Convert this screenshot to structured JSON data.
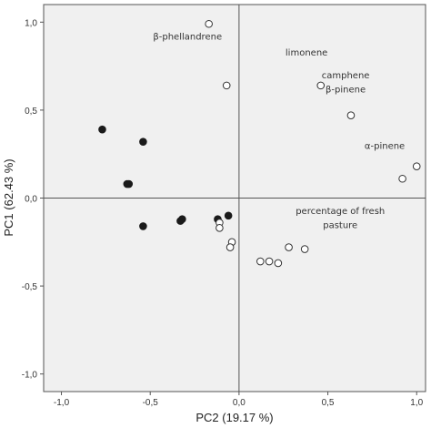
{
  "chart_data": {
    "type": "scatter",
    "title": "",
    "xlabel": "PC2 (19.17 %)",
    "ylabel": "PC1 (62.43 %)",
    "xlim": [
      -1.1,
      1.05
    ],
    "ylim": [
      -1.1,
      1.1
    ],
    "xticks": [
      -1.0,
      -0.5,
      0.0,
      0.5,
      1.0
    ],
    "yticks": [
      -1.0,
      -0.5,
      0.0,
      0.5,
      1.0
    ],
    "xtick_labels": [
      "-1,0",
      "-0,5",
      "0,0",
      "0,5",
      "1,0"
    ],
    "ytick_labels": [
      "-1,0",
      "-0,5",
      "0,0",
      "0,5",
      "1,0"
    ],
    "grid": false,
    "reference_lines": {
      "x": 0,
      "y": 0
    },
    "plot_background": "#f0f0f0",
    "series": [
      {
        "marker": "filled",
        "color": "#1a1a1a",
        "points": [
          {
            "x": -0.77,
            "y": 0.39
          },
          {
            "x": -0.54,
            "y": 0.32
          },
          {
            "x": -0.63,
            "y": 0.08
          },
          {
            "x": -0.62,
            "y": 0.08
          },
          {
            "x": -0.54,
            "y": -0.16
          },
          {
            "x": -0.33,
            "y": -0.13
          },
          {
            "x": -0.32,
            "y": -0.12
          },
          {
            "x": -0.12,
            "y": -0.12
          },
          {
            "x": -0.06,
            "y": -0.1
          }
        ]
      },
      {
        "marker": "hollow",
        "color": "#333333",
        "points": [
          {
            "x": -0.17,
            "y": 0.99
          },
          {
            "x": -0.07,
            "y": 0.64
          },
          {
            "x": 0.46,
            "y": 0.64
          },
          {
            "x": 0.63,
            "y": 0.47
          },
          {
            "x": 1.0,
            "y": 0.18
          },
          {
            "x": 0.92,
            "y": 0.11
          },
          {
            "x": -0.11,
            "y": -0.14
          },
          {
            "x": -0.11,
            "y": -0.17
          },
          {
            "x": -0.04,
            "y": -0.25
          },
          {
            "x": -0.05,
            "y": -0.28
          },
          {
            "x": 0.12,
            "y": -0.36
          },
          {
            "x": 0.17,
            "y": -0.36
          },
          {
            "x": 0.22,
            "y": -0.37
          },
          {
            "x": 0.28,
            "y": -0.28
          },
          {
            "x": 0.37,
            "y": -0.29
          }
        ]
      }
    ],
    "annotations": [
      {
        "text": "β-phellandrene",
        "x": -0.29,
        "y": 0.9
      },
      {
        "text": "limonene",
        "x": 0.38,
        "y": 0.81
      },
      {
        "text": "camphene",
        "x": 0.6,
        "y": 0.68
      },
      {
        "text": "β-pinene",
        "x": 0.6,
        "y": 0.6
      },
      {
        "text": "α-pinene",
        "x": 0.82,
        "y": 0.28
      },
      {
        "text": "percentage of fresh",
        "x": 0.57,
        "y": -0.09
      },
      {
        "text": "pasture",
        "x": 0.57,
        "y": -0.17
      }
    ]
  }
}
